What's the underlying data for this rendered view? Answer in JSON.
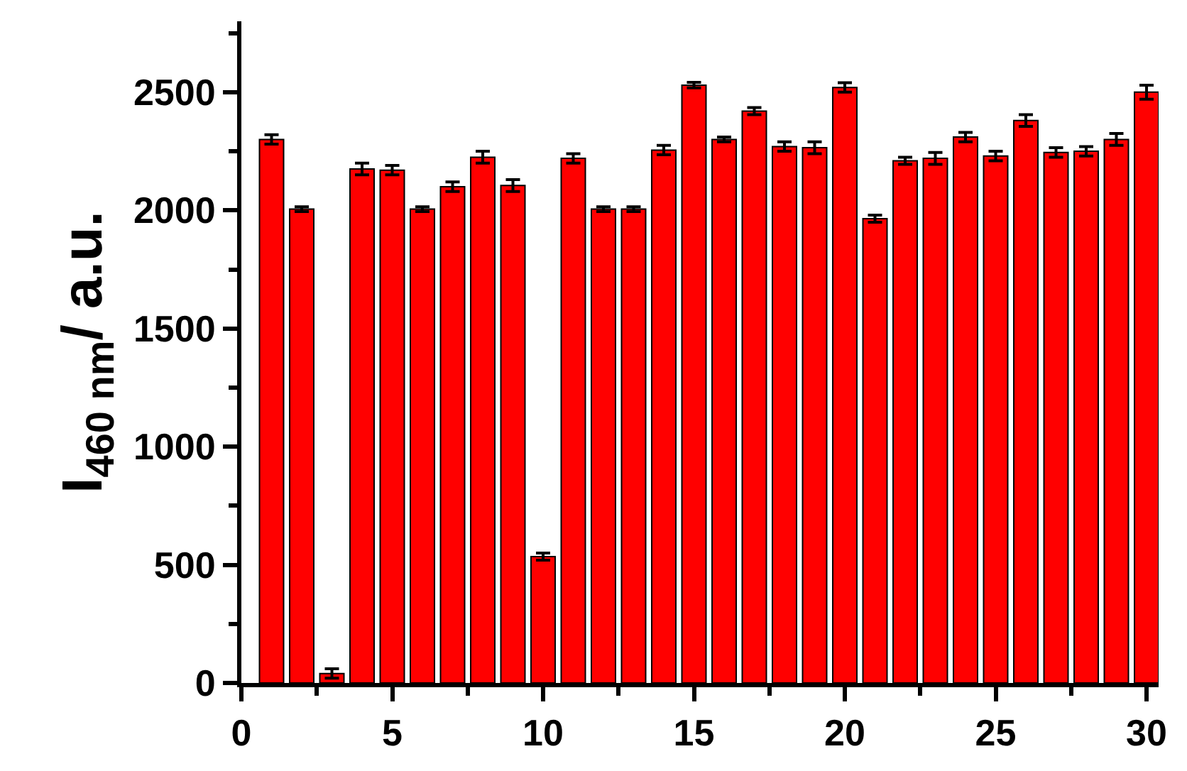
{
  "chart_data": {
    "type": "bar",
    "ylabel": "I$_{460 nm}$/ a.u.",
    "x": [
      1,
      2,
      3,
      4,
      5,
      6,
      7,
      8,
      9,
      10,
      11,
      12,
      13,
      14,
      15,
      16,
      17,
      18,
      19,
      20,
      21,
      22,
      23,
      24,
      25,
      26,
      27,
      28,
      29,
      30
    ],
    "series": [
      {
        "color": "#ff0000",
        "values": [
          2300,
          2005,
          40,
          2175,
          2170,
          2005,
          2100,
          2225,
          2105,
          535,
          2220,
          2005,
          2005,
          2255,
          2530,
          2300,
          2420,
          2270,
          2265,
          2520,
          1965,
          2210,
          2220,
          2310,
          2230,
          2380,
          2245,
          2250,
          2300,
          2500
        ],
        "errors": [
          20,
          10,
          20,
          25,
          20,
          10,
          20,
          25,
          25,
          15,
          20,
          10,
          10,
          20,
          12,
          10,
          15,
          20,
          25,
          20,
          15,
          15,
          25,
          20,
          20,
          25,
          20,
          20,
          25,
          30
        ]
      }
    ],
    "xlim": [
      0,
      30.4
    ],
    "ylim": [
      0,
      2800
    ],
    "xticks": [
      0,
      {
        "value": 2.5,
        "label": null
      },
      5,
      {
        "value": 7.5,
        "label": null
      },
      10,
      {
        "value": 12.5,
        "label": null
      },
      15,
      {
        "value": 17.5,
        "label": null
      },
      20,
      {
        "value": 22.5,
        "label": null
      },
      25,
      {
        "value": 27.5,
        "label": null
      },
      30
    ],
    "yticks": [
      0,
      {
        "value": 250,
        "label": null
      },
      500,
      {
        "value": 750,
        "label": null
      },
      1000,
      {
        "value": 1250,
        "label": null
      },
      1500,
      {
        "value": 1750,
        "label": null
      },
      2000,
      {
        "value": 2250,
        "label": null
      },
      2500,
      {
        "value": 2750,
        "label": null
      }
    ]
  }
}
